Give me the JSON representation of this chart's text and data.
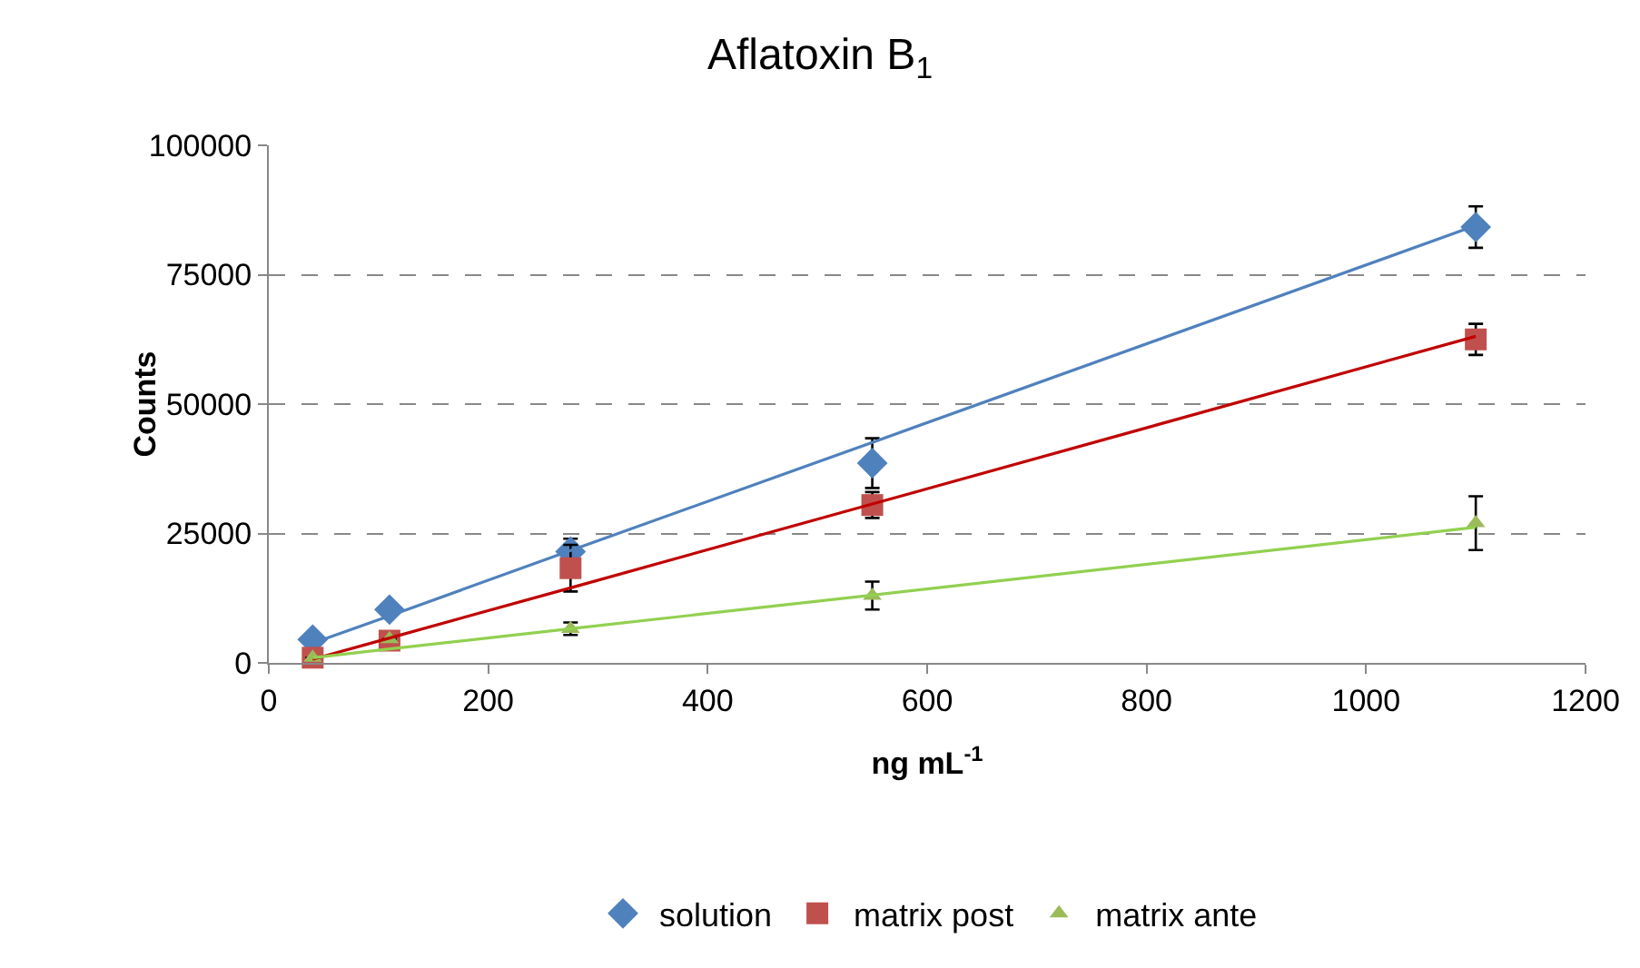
{
  "chart_data": {
    "type": "scatter",
    "title": "Aflatoxin B$_{1}$",
    "xlabel": "ng mL$^{-1}$",
    "ylabel": "Counts",
    "x": [
      40,
      110,
      275,
      550,
      1100
    ],
    "series": [
      {
        "name": "solution",
        "color": "#4f81bd",
        "marker": "diamond",
        "values": [
          4500,
          10300,
          21500,
          38600,
          84200
        ],
        "errors": [
          null,
          null,
          2500,
          4800,
          4000
        ]
      },
      {
        "name": "matrix post",
        "color": "#c0504d",
        "marker": "square",
        "values": [
          1000,
          4300,
          18300,
          30500,
          62500
        ],
        "errors": [
          null,
          null,
          4500,
          2500,
          3000
        ]
      },
      {
        "name": "matrix ante",
        "color": "#9bbb59",
        "marker": "triangle",
        "values": [
          1000,
          4600,
          6600,
          13000,
          27000
        ],
        "errors": [
          null,
          null,
          1200,
          2700,
          5200
        ]
      },
      {
        "type": "line",
        "color": "#4f81bd",
        "marker": "none",
        "values": [
          3800,
          9100,
          21700,
          42600,
          84500
        ]
      },
      {
        "type": "line",
        "color": "#c00000",
        "marker": "none",
        "values": [
          700,
          4800,
          14500,
          30700,
          63100
        ]
      },
      {
        "type": "line",
        "color": "#92d050",
        "marker": "none",
        "values": [
          1000,
          2700,
          6600,
          13100,
          26200
        ]
      }
    ],
    "xlim": [
      0,
      1200
    ],
    "xticks": [
      0,
      200,
      400,
      600,
      800,
      1000,
      1200
    ],
    "ylim": [
      0,
      100000
    ],
    "yticks": [
      0,
      25000,
      50000,
      75000,
      100000
    ],
    "grid": "y",
    "legend": "bottom",
    "line_style": "solid"
  }
}
